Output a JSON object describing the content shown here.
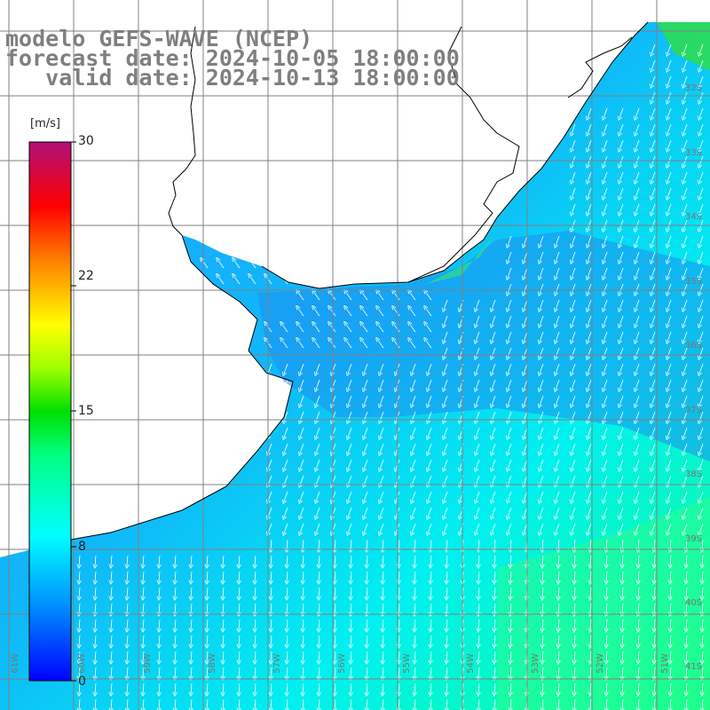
{
  "header": {
    "line1": "modelo GEFS-WAVE (NCEP)",
    "line2": "forecast date: 2024-10-05 18:00:00",
    "line3": "   valid date: 2024-10-13 18:00:00"
  },
  "colorbar": {
    "unit": "[m/s]",
    "ticks": [
      "30",
      "22",
      "15",
      "8",
      "0"
    ],
    "tick_values": [
      30,
      22,
      15,
      8,
      0
    ],
    "colors": [
      "#0000ff",
      "#00a0ff",
      "#00ffff",
      "#00ff60",
      "#00e000",
      "#7fff00",
      "#ffff00",
      "#ff8000",
      "#ff0000",
      "#d00060",
      "#b0107a"
    ]
  },
  "map": {
    "land_color": "#ffffff",
    "grid_color": "#808080",
    "lon_labels": [
      "61W",
      "60W",
      "59W",
      "58W",
      "57W",
      "56W",
      "55W",
      "54W",
      "53W",
      "52W",
      "51W"
    ],
    "lat_labels": [
      "32S",
      "33S",
      "34S",
      "35S",
      "36S",
      "37S",
      "38S",
      "39S",
      "40S",
      "41S"
    ]
  }
}
